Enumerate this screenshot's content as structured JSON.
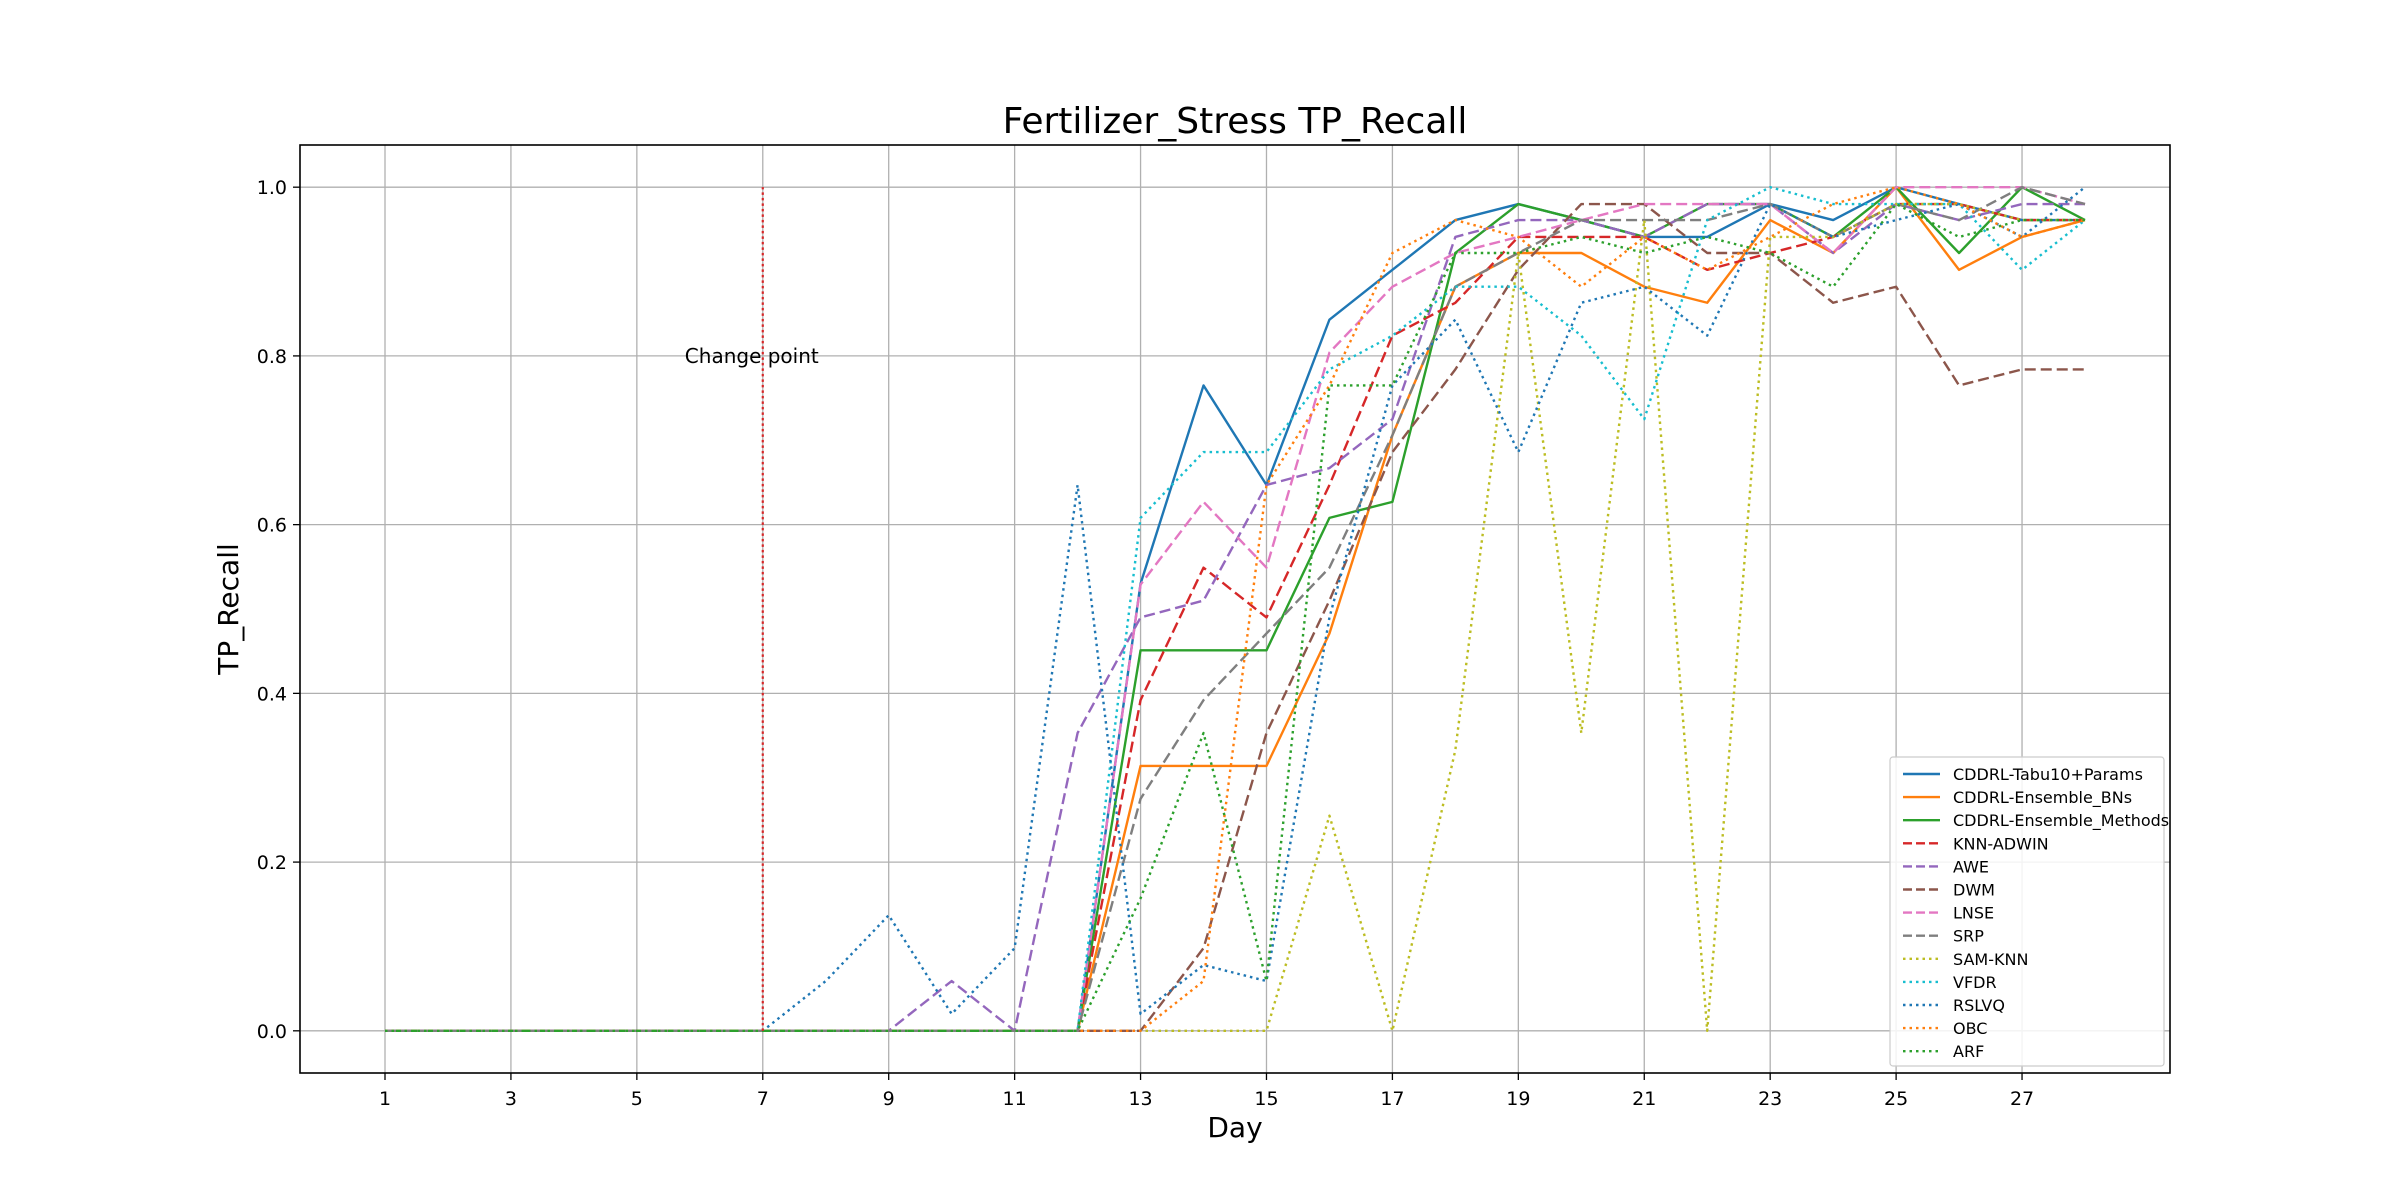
{
  "chart_data": {
    "type": "line",
    "title": "Fertilizer_Stress TP_Recall",
    "xlabel": "Day",
    "ylabel": "TP_Recall",
    "xlim": [
      -0.35,
      29.35
    ],
    "ylim": [
      -0.05,
      1.05
    ],
    "xticks": [
      1,
      3,
      5,
      7,
      9,
      11,
      13,
      15,
      17,
      19,
      21,
      23,
      25,
      27
    ],
    "yticks": [
      0.0,
      0.2,
      0.4,
      0.6,
      0.8,
      1.0
    ],
    "ytick_labels": [
      "0.0",
      "0.2",
      "0.4",
      "0.6",
      "0.8",
      "1.0"
    ],
    "grid": true,
    "legend_position": "lower right",
    "x": [
      1,
      2,
      3,
      4,
      5,
      6,
      7,
      8,
      9,
      10,
      11,
      12,
      13,
      14,
      15,
      16,
      17,
      18,
      19,
      20,
      21,
      22,
      23,
      24,
      25,
      26,
      27,
      28
    ],
    "change_point": {
      "x": 7,
      "y_range": [
        0.0,
        1.0
      ],
      "label": "Change point",
      "color": "#d62728"
    },
    "series": [
      {
        "name": "CDDRL-Tabu10+Params",
        "color": "#1f77b4",
        "style": "solid",
        "values": [
          0,
          0,
          0,
          0,
          0,
          0,
          0,
          0,
          0,
          0,
          0,
          0,
          0.53,
          0.765,
          0.647,
          0.843,
          0.902,
          0.961,
          0.98,
          0.961,
          0.941,
          0.941,
          0.98,
          0.961,
          1.0,
          0.98,
          0.961,
          0.961
        ]
      },
      {
        "name": "CDDRL-Ensemble_BNs",
        "color": "#ff7f0e",
        "style": "solid",
        "values": [
          0,
          0,
          0,
          0,
          0,
          0,
          0,
          0,
          0,
          0,
          0,
          0,
          0.314,
          0.314,
          0.314,
          0.471,
          0.706,
          0.882,
          0.922,
          0.922,
          0.882,
          0.863,
          0.961,
          0.922,
          1.0,
          0.902,
          0.941,
          0.961
        ]
      },
      {
        "name": "CDDRL-Ensemble_Methods",
        "color": "#2ca02c",
        "style": "solid",
        "values": [
          0,
          0,
          0,
          0,
          0,
          0,
          0,
          0,
          0,
          0,
          0,
          0,
          0.451,
          0.451,
          0.451,
          0.608,
          0.627,
          0.922,
          0.98,
          0.961,
          0.941,
          0.98,
          0.98,
          0.941,
          1.0,
          0.922,
          1.0,
          0.961
        ]
      },
      {
        "name": "KNN-ADWIN",
        "color": "#d62728",
        "style": "dashed",
        "values": [
          0,
          0,
          0,
          0,
          0,
          0,
          0,
          0,
          0,
          0,
          0,
          0,
          0.392,
          0.549,
          0.49,
          0.647,
          0.824,
          0.863,
          0.941,
          0.941,
          0.941,
          0.902,
          0.922,
          0.941,
          0.98,
          0.98,
          0.961,
          0.961
        ]
      },
      {
        "name": "AWE",
        "color": "#9467bd",
        "style": "dashed",
        "values": [
          0,
          0,
          0,
          0,
          0,
          0,
          0,
          0,
          0,
          0.059,
          0,
          0.353,
          0.49,
          0.51,
          0.647,
          0.667,
          0.725,
          0.941,
          0.961,
          0.961,
          0.941,
          0.98,
          0.98,
          0.922,
          0.98,
          0.961,
          0.98,
          0.98
        ]
      },
      {
        "name": "DWM",
        "color": "#8c564b",
        "style": "dashed",
        "values": [
          0,
          0,
          0,
          0,
          0,
          0,
          0,
          0,
          0,
          0,
          0,
          0,
          0,
          0.098,
          0.353,
          0.51,
          0.686,
          0.784,
          0.902,
          0.98,
          0.98,
          0.922,
          0.922,
          0.863,
          0.882,
          0.765,
          0.784,
          0.784
        ]
      },
      {
        "name": "LNSE",
        "color": "#e377c2",
        "style": "dashed",
        "values": [
          0,
          0,
          0,
          0,
          0,
          0,
          0,
          0,
          0,
          0,
          0,
          0,
          0.529,
          0.627,
          0.549,
          0.804,
          0.882,
          0.922,
          0.941,
          0.961,
          0.98,
          0.98,
          0.98,
          0.922,
          1.0,
          1.0,
          1.0,
          0.98
        ]
      },
      {
        "name": "SRP",
        "color": "#7f7f7f",
        "style": "dashed",
        "values": [
          0,
          0,
          0,
          0,
          0,
          0,
          0,
          0,
          0,
          0,
          0,
          0,
          0.275,
          0.392,
          0.471,
          0.549,
          0.706,
          0.882,
          0.922,
          0.961,
          0.961,
          0.961,
          0.98,
          0.941,
          0.98,
          0.961,
          1.0,
          0.98
        ]
      },
      {
        "name": "SAM-KNN",
        "color": "#bcbd22",
        "style": "dotted",
        "values": [
          0,
          0,
          0,
          0,
          0,
          0,
          0,
          0,
          0,
          0,
          0,
          0,
          0,
          0,
          0,
          0.255,
          0,
          0.333,
          0.922,
          0.353,
          0.961,
          0,
          0.941,
          0.941,
          0.98,
          0.98,
          0.961,
          0.961
        ]
      },
      {
        "name": "VFDR",
        "color": "#17becf",
        "style": "dotted",
        "values": [
          0,
          0,
          0,
          0,
          0,
          0,
          0,
          0,
          0,
          0,
          0,
          0,
          0.608,
          0.686,
          0.686,
          0.784,
          0.824,
          0.882,
          0.882,
          0.824,
          0.725,
          0.961,
          1.0,
          0.98,
          0.98,
          0.98,
          0.902,
          0.961
        ]
      },
      {
        "name": "RSLVQ",
        "color": "#1f77b4",
        "style": "dotted",
        "values": [
          0,
          0,
          0,
          0,
          0,
          0,
          0,
          0.059,
          0.137,
          0.02,
          0.098,
          0.647,
          0.02,
          0.078,
          0.059,
          0.49,
          0.765,
          0.843,
          0.686,
          0.863,
          0.882,
          0.824,
          0.98,
          0.941,
          0.961,
          0.98,
          0.941,
          1.0
        ]
      },
      {
        "name": "OBC",
        "color": "#ff7f0e",
        "style": "dotted",
        "values": [
          0,
          0,
          0,
          0,
          0,
          0,
          0,
          0,
          0,
          0,
          0,
          0,
          0,
          0.059,
          0.647,
          0.765,
          0.922,
          0.961,
          0.941,
          0.882,
          0.941,
          0.902,
          0.941,
          0.98,
          1.0,
          0.98,
          0.941,
          0.961
        ]
      },
      {
        "name": "ARF",
        "color": "#2ca02c",
        "style": "dotted",
        "values": [
          0,
          0,
          0,
          0,
          0,
          0,
          0,
          0,
          0,
          0,
          0,
          0,
          0.157,
          0.353,
          0.059,
          0.765,
          0.765,
          0.922,
          0.922,
          0.941,
          0.922,
          0.941,
          0.922,
          0.882,
          0.98,
          0.941,
          0.961,
          0.961
        ]
      }
    ]
  }
}
